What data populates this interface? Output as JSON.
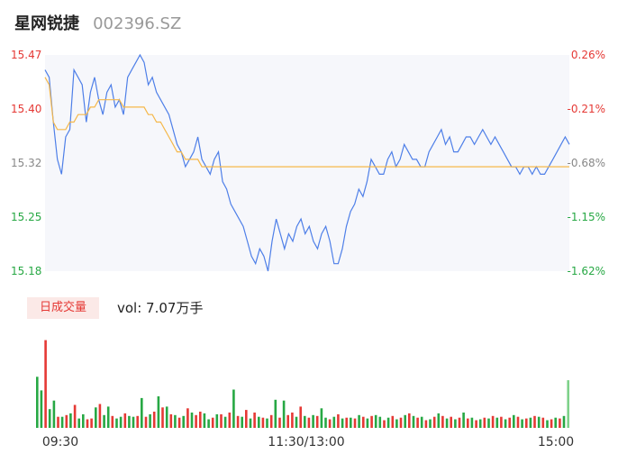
{
  "header": {
    "name": "星网锐捷",
    "code": "002396.SZ"
  },
  "volume_tag": "日成交量",
  "volume_label": "vol: 7.07万手",
  "colors": {
    "price": "#4e7fe8",
    "avg": "#f5b84a",
    "up": "#e53935",
    "down": "#27a844",
    "flat": "#888888"
  },
  "chart_data": [
    {
      "type": "line",
      "y_tick_labels": [
        "15.47",
        "15.40",
        "15.32",
        "15.25",
        "15.18"
      ],
      "y_right_tick_labels": [
        "0.26%",
        "-0.21%",
        "-0.68%",
        "-1.15%",
        "-1.62%"
      ],
      "ylim": [
        15.18,
        15.47
      ],
      "series": [
        {
          "values": [
            15.45,
            15.44,
            15.38,
            15.33,
            15.31,
            15.36,
            15.37,
            15.45,
            15.44,
            15.43,
            15.38,
            15.42,
            15.44,
            15.41,
            15.39,
            15.42,
            15.43,
            15.4,
            15.41,
            15.39,
            15.44,
            15.45,
            15.46,
            15.47,
            15.46,
            15.43,
            15.44,
            15.42,
            15.41,
            15.4,
            15.39,
            15.37,
            15.35,
            15.34,
            15.32,
            15.33,
            15.34,
            15.36,
            15.33,
            15.32,
            15.31,
            15.33,
            15.34,
            15.3,
            15.29,
            15.27,
            15.26,
            15.25,
            15.24,
            15.22,
            15.2,
            15.19,
            15.21,
            15.2,
            15.18,
            15.22,
            15.25,
            15.23,
            15.21,
            15.23,
            15.22,
            15.24,
            15.25,
            15.23,
            15.24,
            15.22,
            15.21,
            15.23,
            15.24,
            15.22,
            15.19,
            15.19,
            15.21,
            15.24,
            15.26,
            15.27,
            15.29,
            15.28,
            15.3,
            15.33,
            15.32,
            15.31,
            15.31,
            15.33,
            15.34,
            15.32,
            15.33,
            15.35,
            15.34,
            15.33,
            15.33,
            15.32,
            15.32,
            15.34,
            15.35,
            15.36,
            15.37,
            15.35,
            15.36,
            15.34,
            15.34,
            15.35,
            15.36,
            15.36,
            15.35,
            15.36,
            15.37,
            15.36,
            15.35,
            15.36,
            15.35,
            15.34,
            15.33,
            15.32,
            15.32,
            15.31,
            15.32,
            15.32,
            15.31,
            15.32,
            15.31,
            15.31,
            15.32,
            15.33,
            15.34,
            15.35,
            15.36,
            15.35
          ],
          "color_key": "price"
        },
        {
          "values": [
            15.44,
            15.43,
            15.38,
            15.37,
            15.37,
            15.37,
            15.38,
            15.38,
            15.39,
            15.39,
            15.39,
            15.4,
            15.4,
            15.41,
            15.41,
            15.41,
            15.41,
            15.41,
            15.41,
            15.4,
            15.4,
            15.4,
            15.4,
            15.4,
            15.4,
            15.39,
            15.39,
            15.38,
            15.38,
            15.37,
            15.36,
            15.35,
            15.34,
            15.34,
            15.33,
            15.33,
            15.33,
            15.33,
            15.32,
            15.32,
            15.32,
            15.32,
            15.32,
            15.32,
            15.32,
            15.32,
            15.32,
            15.32,
            15.32,
            15.32,
            15.32,
            15.32,
            15.32,
            15.32,
            15.32,
            15.32,
            15.32,
            15.32,
            15.32,
            15.32,
            15.32,
            15.32,
            15.32,
            15.32,
            15.32,
            15.32,
            15.32,
            15.32,
            15.32,
            15.32,
            15.32,
            15.32,
            15.32,
            15.32,
            15.32,
            15.32,
            15.32,
            15.32,
            15.32,
            15.32,
            15.32,
            15.32,
            15.32,
            15.32,
            15.32,
            15.32,
            15.32,
            15.32,
            15.32,
            15.32,
            15.32,
            15.32,
            15.32,
            15.32,
            15.32,
            15.32,
            15.32,
            15.32,
            15.32,
            15.32,
            15.32,
            15.32,
            15.32,
            15.32,
            15.32,
            15.32,
            15.32,
            15.32,
            15.32,
            15.32,
            15.32,
            15.32,
            15.32,
            15.32,
            15.32,
            15.32,
            15.32,
            15.32,
            15.32,
            15.32,
            15.32,
            15.32,
            15.32,
            15.32,
            15.32,
            15.32,
            15.32,
            15.32
          ],
          "color_key": "avg"
        }
      ]
    },
    {
      "type": "bar",
      "x_tick_labels": [
        "09:30",
        "11:30/13:00",
        "15:00"
      ],
      "values": [
        60,
        44,
        103,
        22,
        32,
        13,
        13,
        15,
        17,
        27,
        11,
        16,
        10,
        11,
        24,
        28,
        15,
        25,
        14,
        11,
        13,
        17,
        14,
        13,
        14,
        35,
        13,
        16,
        19,
        37,
        24,
        25,
        16,
        15,
        12,
        14,
        23,
        18,
        15,
        19,
        17,
        10,
        12,
        16,
        16,
        13,
        18,
        45,
        14,
        13,
        21,
        11,
        18,
        13,
        12,
        11,
        15,
        33,
        12,
        32,
        15,
        18,
        13,
        25,
        14,
        12,
        15,
        14,
        23,
        12,
        10,
        13,
        16,
        11,
        12,
        12,
        11,
        15,
        13,
        11,
        14,
        15,
        13,
        9,
        12,
        14,
        10,
        12,
        15,
        17,
        14,
        12,
        13,
        9,
        10,
        13,
        17,
        14,
        11,
        13,
        10,
        12,
        18,
        11,
        12,
        9,
        10,
        12,
        11,
        14,
        12,
        13,
        10,
        12,
        15,
        13,
        10,
        11,
        12,
        14,
        13,
        12,
        9,
        10,
        12,
        11,
        14,
        56
      ],
      "ylim": [
        0,
        110
      ],
      "directions": [
        "down",
        "down",
        "up",
        "down",
        "down",
        "up",
        "down",
        "up",
        "down",
        "up",
        "down",
        "down",
        "up",
        "up",
        "down",
        "up",
        "down",
        "down",
        "up",
        "down",
        "down",
        "up",
        "down",
        "down",
        "up",
        "down",
        "up",
        "down",
        "up",
        "down",
        "up",
        "down",
        "up",
        "down",
        "up",
        "down",
        "up",
        "down",
        "up",
        "up",
        "down",
        "down",
        "up",
        "down",
        "up",
        "down",
        "up",
        "down",
        "up",
        "down",
        "up",
        "down",
        "up",
        "down",
        "up",
        "down",
        "up",
        "down",
        "up",
        "down",
        "up",
        "up",
        "down",
        "up",
        "down",
        "up",
        "down",
        "up",
        "down",
        "down",
        "up",
        "down",
        "up",
        "down",
        "up",
        "down",
        "up",
        "down",
        "up",
        "down",
        "up",
        "down",
        "down",
        "up",
        "down",
        "up",
        "down",
        "up",
        "down",
        "up",
        "down",
        "up",
        "down",
        "up",
        "down",
        "up",
        "down",
        "up",
        "down",
        "up",
        "down",
        "up",
        "down",
        "up",
        "down",
        "up",
        "down",
        "up",
        "down",
        "up",
        "down",
        "up",
        "down",
        "up",
        "down",
        "up",
        "down",
        "up",
        "down",
        "up",
        "down",
        "up",
        "down",
        "up",
        "down",
        "up",
        "down",
        "flat"
      ]
    }
  ]
}
